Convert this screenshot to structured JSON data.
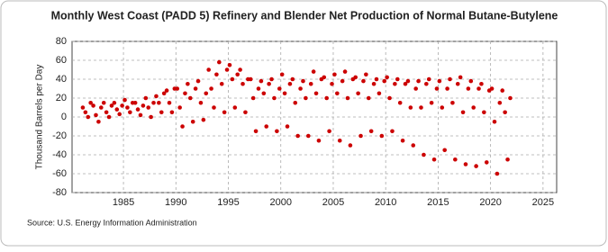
{
  "chart_data": {
    "type": "scatter",
    "title": "Monthly West Coast (PADD 5) Refinery and Blender Net Production of Normal Butane-Butylene",
    "y_label": "Thousand Barrels per Day",
    "source": "Source: U.S. Energy Information Administration",
    "color": "#cc0000",
    "xlim": [
      1980.1,
      2026.3
    ],
    "xticks": [
      1985,
      1990,
      1995,
      2000,
      2005,
      2010,
      2015,
      2020,
      2025
    ],
    "ylim": [
      -80,
      80
    ],
    "yticks": [
      -80,
      -60,
      -40,
      -20,
      0,
      20,
      40,
      60,
      80
    ],
    "grid": true,
    "x": [
      1981.125,
      1981.375,
      1981.625,
      1981.875,
      1982.125,
      1982.375,
      1982.625,
      1982.875,
      1983.125,
      1983.375,
      1983.625,
      1983.875,
      1984.125,
      1984.375,
      1984.625,
      1984.875,
      1985.125,
      1985.375,
      1985.625,
      1985.875,
      1986.125,
      1986.375,
      1986.625,
      1986.875,
      1987.125,
      1987.375,
      1987.625,
      1987.875,
      1988.125,
      1988.375,
      1988.625,
      1988.875,
      1989.125,
      1989.375,
      1989.625,
      1989.875,
      1990.125,
      1990.375,
      1990.625,
      1990.875,
      1991.125,
      1991.375,
      1991.625,
      1991.875,
      1992.125,
      1992.375,
      1992.625,
      1992.875,
      1993.125,
      1993.375,
      1993.625,
      1993.875,
      1994.125,
      1994.375,
      1994.625,
      1994.875,
      1995.125,
      1995.375,
      1995.625,
      1995.875,
      1996.125,
      1996.375,
      1996.625,
      1996.875,
      1997.125,
      1997.375,
      1997.625,
      1997.875,
      1998.125,
      1998.375,
      1998.625,
      1998.875,
      1999.125,
      1999.375,
      1999.625,
      1999.875,
      2000.125,
      2000.375,
      2000.625,
      2000.875,
      2001.125,
      2001.375,
      2001.625,
      2001.875,
      2002.125,
      2002.375,
      2002.625,
      2002.875,
      2003.125,
      2003.375,
      2003.625,
      2003.875,
      2004.125,
      2004.375,
      2004.625,
      2004.875,
      2005.125,
      2005.375,
      2005.625,
      2005.875,
      2006.125,
      2006.375,
      2006.625,
      2006.875,
      2007.125,
      2007.375,
      2007.625,
      2007.875,
      2008.125,
      2008.375,
      2008.625,
      2008.875,
      2009.125,
      2009.375,
      2009.625,
      2009.875,
      2010.125,
      2010.375,
      2010.625,
      2010.875,
      2011.125,
      2011.375,
      2011.625,
      2011.875,
      2012.125,
      2012.375,
      2012.625,
      2012.875,
      2013.125,
      2013.375,
      2013.625,
      2013.875,
      2014.125,
      2014.375,
      2014.625,
      2014.875,
      2015.125,
      2015.375,
      2015.625,
      2015.875,
      2016.125,
      2016.375,
      2016.625,
      2016.875,
      2017.125,
      2017.375,
      2017.625,
      2017.875,
      2018.125,
      2018.375,
      2018.625,
      2018.875,
      2019.125,
      2019.375,
      2019.625,
      2019.875,
      2020.125,
      2020.375,
      2020.625,
      2020.875,
      2021.125,
      2021.375,
      2021.625,
      2021.875
    ],
    "values": [
      10,
      5,
      0,
      15,
      12,
      2,
      -5,
      10,
      15,
      5,
      0,
      12,
      15,
      8,
      3,
      12,
      18,
      10,
      5,
      15,
      15,
      8,
      2,
      12,
      20,
      10,
      0,
      15,
      22,
      15,
      5,
      25,
      28,
      15,
      5,
      30,
      30,
      10,
      -10,
      25,
      35,
      20,
      -5,
      30,
      38,
      15,
      -3,
      25,
      50,
      30,
      10,
      45,
      58,
      35,
      5,
      50,
      55,
      40,
      10,
      45,
      50,
      35,
      5,
      40,
      40,
      20,
      -15,
      30,
      38,
      25,
      -10,
      35,
      40,
      20,
      -15,
      30,
      45,
      25,
      -10,
      35,
      40,
      15,
      -20,
      30,
      38,
      20,
      -20,
      35,
      48,
      25,
      -25,
      40,
      42,
      20,
      -15,
      35,
      45,
      25,
      -25,
      38,
      48,
      20,
      -30,
      40,
      42,
      25,
      -20,
      38,
      45,
      20,
      -15,
      35,
      40,
      25,
      -20,
      38,
      42,
      20,
      -15,
      35,
      40,
      15,
      -25,
      35,
      38,
      10,
      -30,
      30,
      38,
      10,
      -40,
      35,
      40,
      15,
      -45,
      30,
      38,
      10,
      -35,
      30,
      40,
      15,
      -45,
      35,
      42,
      5,
      -50,
      30,
      38,
      10,
      -52,
      30,
      35,
      5,
      -48,
      28,
      30,
      -5,
      -60,
      15,
      28,
      5,
      -45,
      20
    ]
  }
}
